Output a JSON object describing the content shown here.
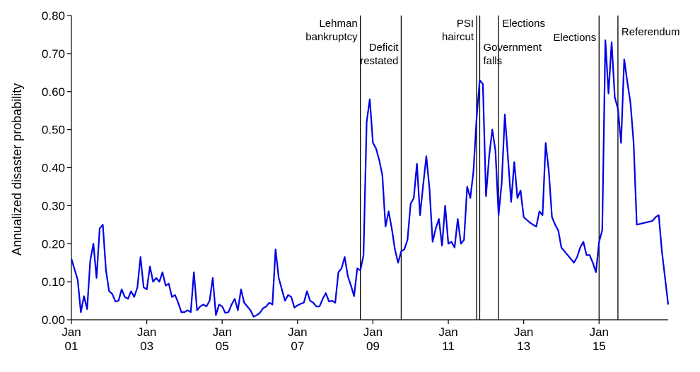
{
  "chart_data": {
    "type": "line",
    "title": "",
    "xlabel": "",
    "ylabel": "Annualized disaster probability",
    "ylim": [
      0,
      0.8
    ],
    "xlim": [
      "2001-01",
      "2016-11"
    ],
    "grid": false,
    "legend": "none",
    "y_ticks": [
      "0.00",
      "0.10",
      "0.20",
      "0.30",
      "0.40",
      "0.50",
      "0.60",
      "0.70",
      "0.80"
    ],
    "x_ticks": [
      {
        "date": "2001-01",
        "month": "Jan",
        "year": "01"
      },
      {
        "date": "2003-01",
        "month": "Jan",
        "year": "03"
      },
      {
        "date": "2005-01",
        "month": "Jan",
        "year": "05"
      },
      {
        "date": "2007-01",
        "month": "Jan",
        "year": "07"
      },
      {
        "date": "2009-01",
        "month": "Jan",
        "year": "09"
      },
      {
        "date": "2011-01",
        "month": "Jan",
        "year": "11"
      },
      {
        "date": "2013-01",
        "month": "Jan",
        "year": "13"
      },
      {
        "date": "2015-01",
        "month": "Jan",
        "year": "15"
      }
    ],
    "series": [
      {
        "color": "#0000e6",
        "points": [
          [
            "2001-01",
            0.16
          ],
          [
            "2001-03",
            0.105
          ],
          [
            "2001-04",
            0.02
          ],
          [
            "2001-05",
            0.062
          ],
          [
            "2001-06",
            0.028
          ],
          [
            "2001-07",
            0.155
          ],
          [
            "2001-08",
            0.2
          ],
          [
            "2001-09",
            0.11
          ],
          [
            "2001-10",
            0.24
          ],
          [
            "2001-11",
            0.25
          ],
          [
            "2001-12",
            0.13
          ],
          [
            "2002-01",
            0.075
          ],
          [
            "2002-02",
            0.068
          ],
          [
            "2002-03",
            0.048
          ],
          [
            "2002-04",
            0.05
          ],
          [
            "2002-05",
            0.08
          ],
          [
            "2002-06",
            0.06
          ],
          [
            "2002-07",
            0.055
          ],
          [
            "2002-08",
            0.075
          ],
          [
            "2002-09",
            0.06
          ],
          [
            "2002-10",
            0.085
          ],
          [
            "2002-11",
            0.165
          ],
          [
            "2002-12",
            0.085
          ],
          [
            "2003-01",
            0.08
          ],
          [
            "2003-02",
            0.14
          ],
          [
            "2003-03",
            0.1
          ],
          [
            "2003-04",
            0.11
          ],
          [
            "2003-05",
            0.1
          ],
          [
            "2003-06",
            0.125
          ],
          [
            "2003-07",
            0.09
          ],
          [
            "2003-08",
            0.095
          ],
          [
            "2003-09",
            0.06
          ],
          [
            "2003-10",
            0.065
          ],
          [
            "2003-11",
            0.045
          ],
          [
            "2003-12",
            0.02
          ],
          [
            "2004-01",
            0.02
          ],
          [
            "2004-02",
            0.025
          ],
          [
            "2004-03",
            0.02
          ],
          [
            "2004-04",
            0.125
          ],
          [
            "2004-05",
            0.025
          ],
          [
            "2004-06",
            0.035
          ],
          [
            "2004-07",
            0.04
          ],
          [
            "2004-08",
            0.035
          ],
          [
            "2004-09",
            0.05
          ],
          [
            "2004-10",
            0.11
          ],
          [
            "2004-11",
            0.012
          ],
          [
            "2004-12",
            0.04
          ],
          [
            "2005-01",
            0.035
          ],
          [
            "2005-02",
            0.018
          ],
          [
            "2005-03",
            0.02
          ],
          [
            "2005-04",
            0.04
          ],
          [
            "2005-05",
            0.055
          ],
          [
            "2005-06",
            0.025
          ],
          [
            "2005-07",
            0.08
          ],
          [
            "2005-08",
            0.045
          ],
          [
            "2005-09",
            0.035
          ],
          [
            "2005-10",
            0.025
          ],
          [
            "2005-11",
            0.008
          ],
          [
            "2005-12",
            0.012
          ],
          [
            "2006-01",
            0.018
          ],
          [
            "2006-02",
            0.03
          ],
          [
            "2006-03",
            0.035
          ],
          [
            "2006-04",
            0.045
          ],
          [
            "2006-05",
            0.04
          ],
          [
            "2006-06",
            0.185
          ],
          [
            "2006-07",
            0.11
          ],
          [
            "2006-08",
            0.08
          ],
          [
            "2006-09",
            0.05
          ],
          [
            "2006-10",
            0.065
          ],
          [
            "2006-11",
            0.06
          ],
          [
            "2006-12",
            0.032
          ],
          [
            "2007-01",
            0.038
          ],
          [
            "2007-02",
            0.042
          ],
          [
            "2007-03",
            0.045
          ],
          [
            "2007-04",
            0.075
          ],
          [
            "2007-05",
            0.05
          ],
          [
            "2007-06",
            0.045
          ],
          [
            "2007-07",
            0.035
          ],
          [
            "2007-08",
            0.035
          ],
          [
            "2007-09",
            0.055
          ],
          [
            "2007-10",
            0.07
          ],
          [
            "2007-11",
            0.048
          ],
          [
            "2007-12",
            0.05
          ],
          [
            "2008-01",
            0.045
          ],
          [
            "2008-02",
            0.125
          ],
          [
            "2008-03",
            0.135
          ],
          [
            "2008-04",
            0.165
          ],
          [
            "2008-05",
            0.115
          ],
          [
            "2008-06",
            0.09
          ],
          [
            "2008-07",
            0.062
          ],
          [
            "2008-08",
            0.135
          ],
          [
            "2008-09",
            0.13
          ],
          [
            "2008-10",
            0.17
          ],
          [
            "2008-11",
            0.52
          ],
          [
            "2008-12",
            0.58
          ],
          [
            "2009-01",
            0.465
          ],
          [
            "2009-02",
            0.45
          ],
          [
            "2009-03",
            0.42
          ],
          [
            "2009-04",
            0.38
          ],
          [
            "2009-05",
            0.245
          ],
          [
            "2009-06",
            0.285
          ],
          [
            "2009-07",
            0.24
          ],
          [
            "2009-08",
            0.185
          ],
          [
            "2009-09",
            0.15
          ],
          [
            "2009-10",
            0.18
          ],
          [
            "2009-11",
            0.185
          ],
          [
            "2009-12",
            0.21
          ],
          [
            "2010-01",
            0.305
          ],
          [
            "2010-02",
            0.32
          ],
          [
            "2010-03",
            0.41
          ],
          [
            "2010-04",
            0.275
          ],
          [
            "2010-05",
            0.355
          ],
          [
            "2010-06",
            0.43
          ],
          [
            "2010-07",
            0.345
          ],
          [
            "2010-08",
            0.205
          ],
          [
            "2010-09",
            0.24
          ],
          [
            "2010-10",
            0.265
          ],
          [
            "2010-11",
            0.195
          ],
          [
            "2010-12",
            0.3
          ],
          [
            "2011-01",
            0.2
          ],
          [
            "2011-02",
            0.205
          ],
          [
            "2011-03",
            0.19
          ],
          [
            "2011-04",
            0.265
          ],
          [
            "2011-05",
            0.2
          ],
          [
            "2011-06",
            0.21
          ],
          [
            "2011-07",
            0.35
          ],
          [
            "2011-08",
            0.32
          ],
          [
            "2011-09",
            0.39
          ],
          [
            "2011-10",
            0.53
          ],
          [
            "2011-11",
            0.63
          ],
          [
            "2011-12",
            0.62
          ],
          [
            "2012-01",
            0.325
          ],
          [
            "2012-02",
            0.43
          ],
          [
            "2012-03",
            0.5
          ],
          [
            "2012-04",
            0.445
          ],
          [
            "2012-05",
            0.275
          ],
          [
            "2012-06",
            0.36
          ],
          [
            "2012-07",
            0.54
          ],
          [
            "2012-08",
            0.425
          ],
          [
            "2012-09",
            0.31
          ],
          [
            "2012-10",
            0.415
          ],
          [
            "2012-11",
            0.32
          ],
          [
            "2012-12",
            0.34
          ],
          [
            "2013-01",
            0.27
          ],
          [
            "2013-03",
            0.255
          ],
          [
            "2013-05",
            0.245
          ],
          [
            "2013-06",
            0.285
          ],
          [
            "2013-07",
            0.275
          ],
          [
            "2013-08",
            0.465
          ],
          [
            "2013-09",
            0.39
          ],
          [
            "2013-10",
            0.27
          ],
          [
            "2013-11",
            0.25
          ],
          [
            "2013-12",
            0.235
          ],
          [
            "2014-01",
            0.19
          ],
          [
            "2014-03",
            0.17
          ],
          [
            "2014-05",
            0.15
          ],
          [
            "2014-06",
            0.165
          ],
          [
            "2014-07",
            0.19
          ],
          [
            "2014-08",
            0.205
          ],
          [
            "2014-09",
            0.17
          ],
          [
            "2014-10",
            0.17
          ],
          [
            "2014-11",
            0.15
          ],
          [
            "2014-12",
            0.125
          ],
          [
            "2015-01",
            0.205
          ],
          [
            "2015-02",
            0.235
          ],
          [
            "2015-03",
            0.735
          ],
          [
            "2015-04",
            0.595
          ],
          [
            "2015-05",
            0.73
          ],
          [
            "2015-06",
            0.585
          ],
          [
            "2015-07",
            0.555
          ],
          [
            "2015-08",
            0.465
          ],
          [
            "2015-09",
            0.685
          ],
          [
            "2015-10",
            0.625
          ],
          [
            "2015-11",
            0.57
          ],
          [
            "2015-12",
            0.465
          ],
          [
            "2016-01",
            0.25
          ],
          [
            "2016-06",
            0.26
          ],
          [
            "2016-07",
            0.27
          ],
          [
            "2016-08",
            0.275
          ],
          [
            "2016-09",
            0.18
          ],
          [
            "2016-10",
            0.11
          ],
          [
            "2016-11",
            0.04
          ]
        ]
      }
    ],
    "events": [
      {
        "date": "2008-09",
        "label_lines": [
          "Lehman",
          "bankruptcy"
        ],
        "anchor": "end"
      },
      {
        "date": "2009-10",
        "label_lines": [
          "Deficit",
          "restated"
        ],
        "anchor": "end"
      },
      {
        "date": "2011-10",
        "label_lines": [
          "PSI",
          "haircut"
        ],
        "anchor": "end"
      },
      {
        "date": "2011-11",
        "label_lines": [
          "Government",
          "falls"
        ],
        "anchor": "start"
      },
      {
        "date": "2012-05",
        "label_lines": [
          "Elections"
        ],
        "anchor": "start"
      },
      {
        "date": "2015-01",
        "label_lines": [
          "Elections"
        ],
        "anchor": "end"
      },
      {
        "date": "2015-07",
        "label_lines": [
          "Referendum"
        ],
        "anchor": "start"
      }
    ]
  }
}
